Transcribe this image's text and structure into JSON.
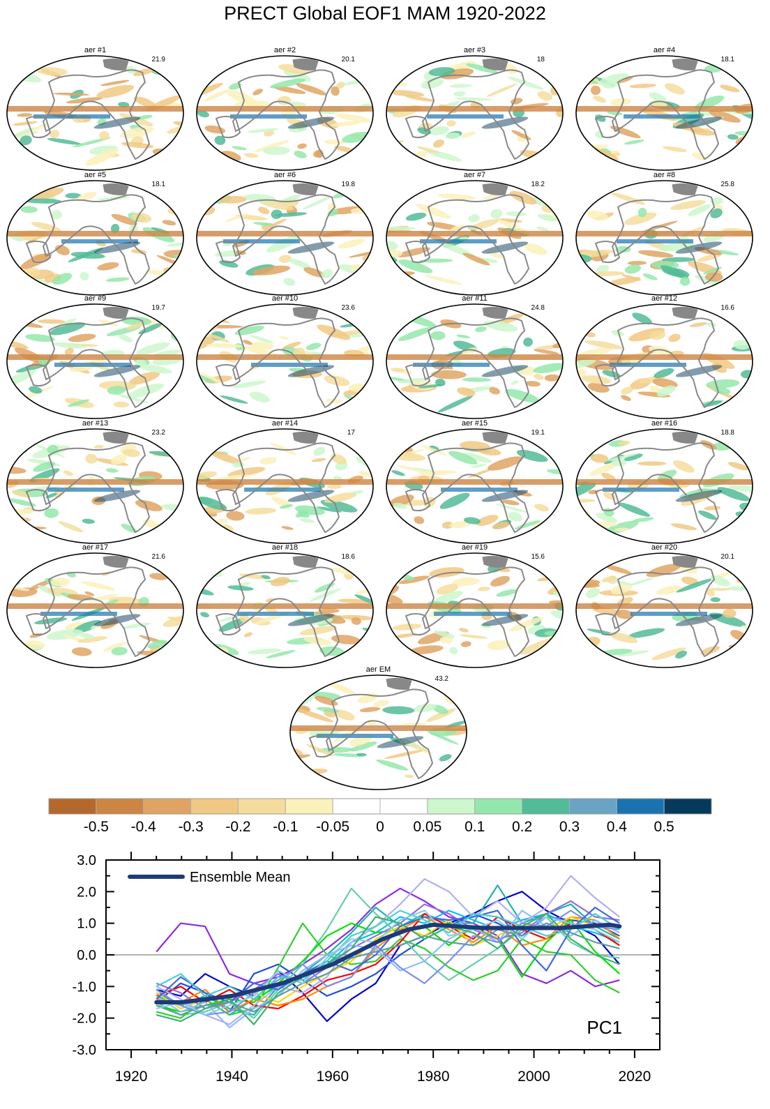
{
  "title": "PRECT Global EOF1 MAM 1920-2022",
  "maps": [
    {
      "label": "aer #1",
      "pct": "21.9"
    },
    {
      "label": "aer #2",
      "pct": "20.1"
    },
    {
      "label": "aer #3",
      "pct": "18"
    },
    {
      "label": "aer #4",
      "pct": "18.1"
    },
    {
      "label": "aer #5",
      "pct": "18.1"
    },
    {
      "label": "aer #6",
      "pct": "19.8"
    },
    {
      "label": "aer #7",
      "pct": "18.2"
    },
    {
      "label": "aer #8",
      "pct": "25.8"
    },
    {
      "label": "aer #9",
      "pct": "19.7"
    },
    {
      "label": "aer #10",
      "pct": "23.6"
    },
    {
      "label": "aer #11",
      "pct": "24.8"
    },
    {
      "label": "aer #12",
      "pct": "16.6"
    },
    {
      "label": "aer #13",
      "pct": "23.2"
    },
    {
      "label": "aer #14",
      "pct": "17"
    },
    {
      "label": "aer #15",
      "pct": "19.1"
    },
    {
      "label": "aer #16",
      "pct": "18.8"
    },
    {
      "label": "aer #17",
      "pct": "21.6"
    },
    {
      "label": "aer #18",
      "pct": "18.6"
    },
    {
      "label": "aer #19",
      "pct": "15.6"
    },
    {
      "label": "aer #20",
      "pct": "20.1"
    },
    {
      "label": "aer EM",
      "pct": "43.2"
    }
  ],
  "colorbar": {
    "colors": [
      "#b5682b",
      "#cd8543",
      "#dfa463",
      "#f1c883",
      "#f4dd9c",
      "#fbf1bb",
      "#ffffff",
      "#ffffff",
      "#cdf7cd",
      "#94e7ac",
      "#52bb98",
      "#6aa4c5",
      "#1a73b0",
      "#063a5c"
    ],
    "labels": [
      "-0.5",
      "-0.4",
      "-0.3",
      "-0.2",
      "-0.1",
      "-0.05",
      "0",
      "0.05",
      "0.1",
      "0.2",
      "0.3",
      "0.4",
      "0.5"
    ]
  },
  "chart_data": {
    "type": "line",
    "annotation": "PC1",
    "legend": {
      "entries": [
        "Ensemble Mean"
      ],
      "placement": "top-left"
    },
    "xlim": [
      1915,
      2025
    ],
    "ylim": [
      -3,
      3
    ],
    "xticks": [
      "1920",
      "1940",
      "1960",
      "1980",
      "2000",
      "2020"
    ],
    "yticks": [
      "3.0",
      "2.0",
      "1.0",
      "0.0",
      "-1.0",
      "-2.0",
      "-3.0"
    ],
    "zero_line": true,
    "x_start": 1925,
    "x_end": 2017,
    "ensemble_mean": {
      "name": "Ensemble Mean",
      "color": "#1e3a78",
      "x": [
        1925,
        1930,
        1935,
        1940,
        1945,
        1950,
        1955,
        1960,
        1965,
        1970,
        1975,
        1980,
        1985,
        1990,
        1995,
        2000,
        2005,
        2010,
        2015,
        2017
      ],
      "y": [
        -1.5,
        -1.5,
        -1.4,
        -1.3,
        -1.1,
        -0.9,
        -0.6,
        -0.3,
        0.1,
        0.5,
        0.8,
        0.95,
        0.9,
        0.85,
        0.85,
        0.85,
        0.85,
        0.9,
        0.95,
        0.9
      ]
    },
    "members": [
      {
        "color": "#8a2be2",
        "y": [
          0.1,
          1.0,
          0.9,
          -0.6,
          -0.9,
          -0.7,
          -0.3,
          0.2,
          0.8,
          1.6,
          2.1,
          1.7,
          1.2,
          1.0,
          0.6,
          -0.6,
          -0.9,
          -0.5,
          -1.0,
          -0.8
        ]
      },
      {
        "color": "#0000cd",
        "y": [
          -1.1,
          -1.3,
          -0.6,
          -1.0,
          -1.3,
          -0.5,
          -1.2,
          -2.1,
          -1.4,
          -0.9,
          0.3,
          0.6,
          1.0,
          1.3,
          1.7,
          2.0,
          1.4,
          1.0,
          0.6,
          -0.3
        ]
      },
      {
        "color": "#1e4fd8",
        "y": [
          -1.5,
          -0.9,
          -1.2,
          -1.8,
          -0.6,
          -0.3,
          -0.8,
          -1.3,
          -1.0,
          -0.6,
          0.0,
          0.5,
          0.9,
          1.3,
          1.0,
          0.6,
          1.2,
          1.1,
          1.0,
          0.6
        ]
      },
      {
        "color": "#00bfff",
        "y": [
          -1.3,
          -1.6,
          -1.4,
          -1.9,
          -1.4,
          -1.0,
          -0.6,
          -0.3,
          0.4,
          0.7,
          1.2,
          1.0,
          1.4,
          1.1,
          0.8,
          1.1,
          1.3,
          0.9,
          0.7,
          0.4
        ]
      },
      {
        "color": "#20b2aa",
        "y": [
          -1.2,
          -1.6,
          -1.3,
          -1.7,
          -1.9,
          -1.0,
          -0.6,
          0.0,
          0.7,
          1.5,
          0.9,
          1.3,
          1.0,
          1.0,
          2.2,
          1.0,
          1.3,
          1.6,
          0.9,
          0.5
        ]
      },
      {
        "color": "#66cdaa",
        "y": [
          -1.5,
          -1.9,
          -1.8,
          -1.5,
          -2.0,
          -1.1,
          -0.3,
          0.8,
          2.1,
          1.3,
          0.6,
          -0.2,
          -0.8,
          -0.3,
          0.2,
          0.8,
          1.2,
          0.4,
          0.0,
          -0.1
        ]
      },
      {
        "color": "#32cd32",
        "y": [
          -1.8,
          -2.0,
          -1.4,
          -1.9,
          -1.7,
          -0.4,
          1.0,
          0.0,
          -0.3,
          -0.2,
          0.5,
          0.2,
          -0.4,
          -0.8,
          -0.5,
          0.5,
          0.1,
          0.0,
          -0.8,
          -1.2
        ]
      },
      {
        "color": "#00e000",
        "y": [
          -1.6,
          -1.8,
          -1.6,
          -1.4,
          -1.5,
          -0.9,
          -0.2,
          0.6,
          1.0,
          0.7,
          0.8,
          0.9,
          0.3,
          0.9,
          0.5,
          -0.7,
          0.4,
          1.1,
          0.1,
          -0.6
        ]
      },
      {
        "color": "#ff0000",
        "y": [
          -1.3,
          -1.0,
          -1.5,
          -1.1,
          -1.6,
          -1.7,
          -1.3,
          -0.8,
          -0.6,
          -0.3,
          0.4,
          1.3,
          0.9,
          0.5,
          1.2,
          0.8,
          0.5,
          1.0,
          0.8,
          0.3
        ]
      },
      {
        "color": "#ff8c00",
        "y": [
          -1.4,
          -1.5,
          -1.1,
          -1.8,
          -1.4,
          -1.6,
          -1.4,
          -1.0,
          -0.7,
          0.2,
          0.8,
          1.2,
          0.8,
          0.4,
          0.9,
          0.3,
          0.5,
          1.2,
          1.1,
          0.5
        ]
      },
      {
        "color": "#ffd700",
        "y": [
          -1.2,
          -1.7,
          -1.4,
          -1.3,
          -1.2,
          -1.5,
          -1.0,
          -0.6,
          -0.2,
          0.5,
          0.9,
          0.6,
          1.1,
          0.3,
          0.6,
          1.0,
          0.8,
          1.2,
          0.9,
          0.9
        ]
      },
      {
        "color": "#9370db",
        "y": [
          -0.9,
          -1.2,
          -1.7,
          -1.5,
          -1.1,
          -0.6,
          -0.9,
          -0.4,
          0.2,
          0.6,
          1.0,
          1.6,
          1.3,
          0.8,
          0.5,
          0.7,
          1.3,
          1.7,
          1.2,
          1.1
        ]
      },
      {
        "color": "#b0b0f0",
        "y": [
          -1.0,
          -1.4,
          -1.9,
          -2.2,
          -1.6,
          -1.0,
          -1.2,
          -0.7,
          0.4,
          0.9,
          1.6,
          2.4,
          2.0,
          1.2,
          1.7,
          1.0,
          1.5,
          2.5,
          1.8,
          1.2
        ]
      },
      {
        "color": "#8fbcff",
        "y": [
          -1.3,
          -1.8,
          -1.5,
          -2.3,
          -1.7,
          -1.3,
          -0.5,
          0.0,
          0.3,
          0.2,
          -0.5,
          -0.2,
          0.5,
          0.9,
          0.4,
          1.4,
          0.9,
          0.6,
          1.1,
          0.7
        ]
      },
      {
        "color": "#7b8ef0",
        "y": [
          -1.1,
          -1.6,
          -1.9,
          -1.8,
          -1.2,
          -0.8,
          -0.3,
          -1.0,
          -0.7,
          0.3,
          -0.4,
          -0.9,
          -0.2,
          0.6,
          0.4,
          1.0,
          0.9,
          1.4,
          0.9,
          0.8
        ]
      },
      {
        "color": "#4169e1",
        "y": [
          -1.4,
          -0.7,
          -1.2,
          -1.5,
          -0.9,
          -1.1,
          -0.6,
          -0.2,
          -0.5,
          0.0,
          0.9,
          1.2,
          1.1,
          1.2,
          1.4,
          0.3,
          -0.5,
          0.8,
          1.5,
          1.0
        ]
      },
      {
        "color": "#5f9ea0",
        "y": [
          -1.6,
          -1.9,
          -1.6,
          -1.5,
          -1.8,
          -1.3,
          -0.9,
          -0.6,
          -0.1,
          0.1,
          0.3,
          0.6,
          0.4,
          0.3,
          0.8,
          0.6,
          1.0,
          0.7,
          0.4,
          0.2
        ]
      },
      {
        "color": "#48d1cc",
        "y": [
          -1.0,
          -0.6,
          -1.3,
          -1.0,
          -1.4,
          -0.7,
          -0.8,
          -0.2,
          0.6,
          0.9,
          1.4,
          1.1,
          0.7,
          1.3,
          1.2,
          0.9,
          0.6,
          0.8,
          1.3,
          0.8
        ]
      },
      {
        "color": "#87ceeb",
        "y": [
          -1.7,
          -1.5,
          -1.9,
          -1.6,
          -1.3,
          -0.5,
          -0.9,
          -0.1,
          0.5,
          0.4,
          1.1,
          1.4,
          0.6,
          0.8,
          1.1,
          0.5,
          1.2,
          1.0,
          0.8,
          0.4
        ]
      },
      {
        "color": "#3cb371",
        "y": [
          -1.9,
          -2.1,
          -1.7,
          -1.4,
          -2.2,
          -1.2,
          -0.7,
          -0.3,
          0.2,
          1.2,
          1.0,
          0.5,
          0.9,
          0.7,
          0.2,
          0.9,
          1.3,
          0.5,
          0.0,
          -0.3
        ]
      }
    ]
  }
}
